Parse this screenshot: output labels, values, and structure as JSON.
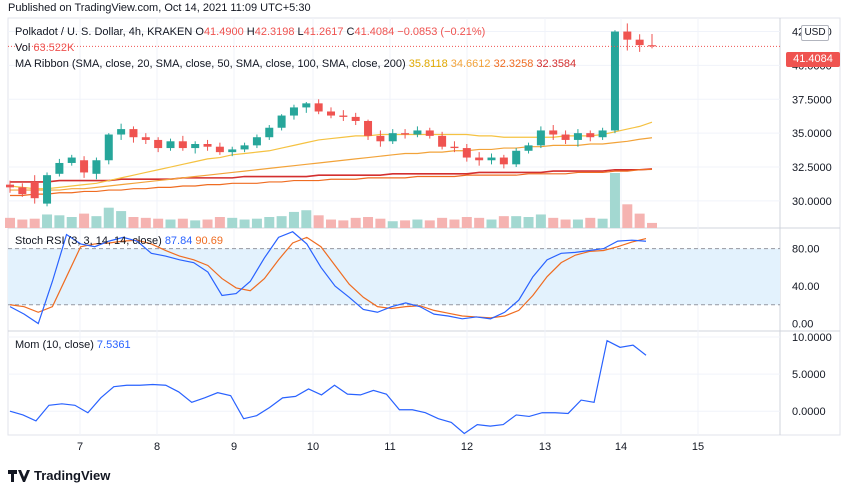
{
  "published": "Published on TradingView.com, Oct 14, 2021 11:09 UTC+5:30",
  "brand": "TradingView",
  "colors": {
    "up": "#26a69a",
    "down": "#ef5350",
    "vol_up": "#a3d8d1",
    "vol_down": "#f5b3b1",
    "sma20": "#f5c242",
    "sma50": "#f2a33a",
    "sma100": "#ef6c21",
    "sma200": "#d32f2f",
    "stoch_k": "#2962ff",
    "stoch_d": "#ef6c21",
    "mom": "#2962ff",
    "rsi_band": "#e3f2fd"
  },
  "legend": {
    "main": {
      "title": "Polkadot / U. S. Dollar, 4h, KRAKEN",
      "o_label": "O",
      "o": "41.4900",
      "h_label": "H",
      "h": "42.3198",
      "l_label": "L",
      "l": "41.2617",
      "c_label": "C",
      "c": "41.4084",
      "change": "−0.0853 (−0.21%)"
    },
    "vol": {
      "label": "Vol",
      "value": "63.522K"
    },
    "ribbon": {
      "label": "MA Ribbon (SMA, close, 20, SMA, close, 50, SMA, close, 100, SMA, close, 200)",
      "v1": "35.8118",
      "v2": "34.6612",
      "v3": "32.3258",
      "v4": "32.3584"
    },
    "stoch": {
      "label": "Stoch RSI (3, 3, 14, 14, close)",
      "k": "87.84",
      "d": "90.69"
    },
    "mom": {
      "label": "Mom (10, close)",
      "value": "7.5361"
    }
  },
  "currency_label": "USD",
  "last_price_label": "41.4084",
  "chart_data": [
    {
      "type": "candlestick",
      "title": "Polkadot / U. S. Dollar, 4h, KRAKEN",
      "x_ticks": [
        "7",
        "8",
        "9",
        "10",
        "11",
        "12",
        "13",
        "14",
        "15"
      ],
      "y_ticks": [
        "30.0000",
        "32.5000",
        "35.0000",
        "37.5000",
        "40.0000",
        "42.5000"
      ],
      "ylim": [
        28.0,
        43.5
      ],
      "candles": [
        {
          "o": 31.2,
          "h": 31.5,
          "l": 30.6,
          "c": 31.0
        },
        {
          "o": 31.0,
          "h": 31.3,
          "l": 30.3,
          "c": 30.5
        },
        {
          "o": 31.4,
          "h": 31.9,
          "l": 29.8,
          "c": 30.2
        },
        {
          "o": 29.8,
          "h": 32.1,
          "l": 29.6,
          "c": 31.9
        },
        {
          "o": 32.0,
          "h": 33.1,
          "l": 31.8,
          "c": 32.8
        },
        {
          "o": 32.8,
          "h": 33.4,
          "l": 32.6,
          "c": 33.2
        },
        {
          "o": 33.0,
          "h": 33.3,
          "l": 31.7,
          "c": 32.1
        },
        {
          "o": 32.0,
          "h": 33.2,
          "l": 31.6,
          "c": 33.0
        },
        {
          "o": 33.0,
          "h": 35.0,
          "l": 32.7,
          "c": 34.9
        },
        {
          "o": 34.9,
          "h": 35.7,
          "l": 34.5,
          "c": 35.3
        },
        {
          "o": 35.3,
          "h": 35.5,
          "l": 34.3,
          "c": 34.7
        },
        {
          "o": 34.7,
          "h": 35.0,
          "l": 34.2,
          "c": 34.5
        },
        {
          "o": 34.5,
          "h": 34.7,
          "l": 33.6,
          "c": 33.9
        },
        {
          "o": 33.9,
          "h": 34.6,
          "l": 33.7,
          "c": 34.4
        },
        {
          "o": 34.4,
          "h": 34.8,
          "l": 33.7,
          "c": 33.9
        },
        {
          "o": 33.9,
          "h": 34.4,
          "l": 33.5,
          "c": 34.2
        },
        {
          "o": 34.2,
          "h": 34.5,
          "l": 33.7,
          "c": 34.0
        },
        {
          "o": 34.0,
          "h": 34.3,
          "l": 33.4,
          "c": 33.6
        },
        {
          "o": 33.6,
          "h": 34.0,
          "l": 33.3,
          "c": 33.8
        },
        {
          "o": 33.8,
          "h": 34.3,
          "l": 33.6,
          "c": 34.1
        },
        {
          "o": 34.1,
          "h": 34.9,
          "l": 33.9,
          "c": 34.7
        },
        {
          "o": 34.7,
          "h": 35.6,
          "l": 34.5,
          "c": 35.4
        },
        {
          "o": 35.4,
          "h": 36.4,
          "l": 35.2,
          "c": 36.3
        },
        {
          "o": 36.3,
          "h": 37.1,
          "l": 36.0,
          "c": 36.9
        },
        {
          "o": 36.9,
          "h": 37.3,
          "l": 36.5,
          "c": 37.2
        },
        {
          "o": 37.2,
          "h": 37.5,
          "l": 36.4,
          "c": 36.6
        },
        {
          "o": 36.6,
          "h": 36.9,
          "l": 36.1,
          "c": 36.3
        },
        {
          "o": 36.3,
          "h": 36.7,
          "l": 35.9,
          "c": 36.2
        },
        {
          "o": 36.2,
          "h": 36.5,
          "l": 35.6,
          "c": 35.9
        },
        {
          "o": 35.9,
          "h": 36.0,
          "l": 34.5,
          "c": 34.8
        },
        {
          "o": 34.8,
          "h": 35.2,
          "l": 34.0,
          "c": 34.4
        },
        {
          "o": 34.4,
          "h": 35.3,
          "l": 34.2,
          "c": 35.0
        },
        {
          "o": 35.0,
          "h": 35.3,
          "l": 34.6,
          "c": 34.9
        },
        {
          "o": 34.9,
          "h": 35.5,
          "l": 34.7,
          "c": 35.2
        },
        {
          "o": 35.2,
          "h": 35.4,
          "l": 34.6,
          "c": 34.8
        },
        {
          "o": 34.8,
          "h": 35.1,
          "l": 33.8,
          "c": 34.0
        },
        {
          "o": 34.0,
          "h": 34.4,
          "l": 33.6,
          "c": 33.9
        },
        {
          "o": 33.9,
          "h": 34.2,
          "l": 32.9,
          "c": 33.2
        },
        {
          "o": 33.2,
          "h": 33.6,
          "l": 32.6,
          "c": 33.0
        },
        {
          "o": 33.0,
          "h": 33.5,
          "l": 32.7,
          "c": 33.2
        },
        {
          "o": 33.2,
          "h": 33.4,
          "l": 32.4,
          "c": 32.7
        },
        {
          "o": 32.7,
          "h": 33.9,
          "l": 32.5,
          "c": 33.7
        },
        {
          "o": 33.7,
          "h": 34.3,
          "l": 33.5,
          "c": 34.1
        },
        {
          "o": 34.1,
          "h": 35.5,
          "l": 33.9,
          "c": 35.2
        },
        {
          "o": 35.2,
          "h": 35.6,
          "l": 34.5,
          "c": 34.9
        },
        {
          "o": 34.9,
          "h": 35.2,
          "l": 34.2,
          "c": 34.5
        },
        {
          "o": 34.5,
          "h": 35.3,
          "l": 34.0,
          "c": 35.0
        },
        {
          "o": 35.0,
          "h": 35.2,
          "l": 34.4,
          "c": 34.7
        },
        {
          "o": 34.7,
          "h": 35.4,
          "l": 34.5,
          "c": 35.2
        },
        {
          "o": 35.2,
          "h": 42.6,
          "l": 35.0,
          "c": 42.5
        },
        {
          "o": 42.5,
          "h": 43.1,
          "l": 41.1,
          "c": 41.9
        },
        {
          "o": 41.9,
          "h": 42.3,
          "l": 41.0,
          "c": 41.5
        },
        {
          "o": 41.49,
          "h": 42.3198,
          "l": 41.2617,
          "c": 41.4084
        }
      ],
      "volume": [
        1.2,
        1.0,
        1.1,
        1.6,
        1.5,
        1.3,
        1.7,
        1.4,
        2.4,
        2.0,
        1.3,
        1.2,
        1.1,
        1.0,
        1.1,
        0.9,
        1.0,
        1.3,
        1.2,
        1.0,
        1.1,
        1.3,
        1.4,
        1.9,
        2.1,
        1.5,
        1.0,
        0.9,
        1.2,
        1.3,
        1.1,
        0.8,
        0.9,
        1.0,
        0.9,
        1.2,
        1.0,
        1.3,
        1.2,
        1.0,
        1.4,
        1.4,
        1.3,
        1.6,
        1.2,
        1.0,
        1.0,
        1.2,
        1.1,
        6.5,
        2.8,
        1.7,
        0.6
      ],
      "sma20": [
        31.1,
        31.0,
        30.9,
        30.9,
        31.0,
        31.1,
        31.2,
        31.3,
        31.5,
        31.7,
        31.9,
        32.1,
        32.3,
        32.5,
        32.7,
        32.9,
        33.1,
        33.2,
        33.4,
        33.5,
        33.6,
        33.7,
        33.9,
        34.1,
        34.3,
        34.5,
        34.6,
        34.7,
        34.8,
        34.8,
        34.9,
        34.9,
        34.9,
        34.9,
        34.9,
        34.9,
        34.9,
        34.9,
        34.8,
        34.8,
        34.7,
        34.7,
        34.7,
        34.7,
        34.7,
        34.8,
        34.8,
        34.8,
        34.9,
        35.1,
        35.3,
        35.5,
        35.8118
      ],
      "sma50": [
        30.8,
        30.8,
        30.8,
        30.8,
        30.8,
        30.9,
        30.9,
        31.0,
        31.1,
        31.2,
        31.3,
        31.4,
        31.5,
        31.6,
        31.7,
        31.8,
        31.9,
        32.0,
        32.1,
        32.2,
        32.3,
        32.4,
        32.5,
        32.6,
        32.7,
        32.8,
        32.9,
        33.0,
        33.1,
        33.2,
        33.3,
        33.4,
        33.5,
        33.5,
        33.6,
        33.6,
        33.7,
        33.7,
        33.8,
        33.8,
        33.9,
        33.9,
        34.0,
        34.0,
        34.1,
        34.1,
        34.1,
        34.2,
        34.2,
        34.3,
        34.4,
        34.55,
        34.6612
      ],
      "sma100": [
        30.4,
        30.4,
        30.5,
        30.5,
        30.6,
        30.6,
        30.7,
        30.7,
        30.8,
        30.8,
        30.9,
        30.9,
        31.0,
        31.0,
        31.1,
        31.1,
        31.2,
        31.2,
        31.3,
        31.3,
        31.3,
        31.4,
        31.4,
        31.5,
        31.5,
        31.5,
        31.6,
        31.6,
        31.6,
        31.7,
        31.7,
        31.7,
        31.7,
        31.8,
        31.8,
        31.8,
        31.8,
        31.9,
        31.9,
        31.9,
        31.9,
        31.9,
        32.0,
        32.0,
        32.0,
        32.0,
        32.1,
        32.1,
        32.1,
        32.2,
        32.2,
        32.3,
        32.3258
      ],
      "sma200": [
        31.4,
        31.4,
        31.4,
        31.4,
        31.5,
        31.5,
        31.5,
        31.5,
        31.5,
        31.6,
        31.6,
        31.6,
        31.6,
        31.6,
        31.7,
        31.7,
        31.7,
        31.7,
        31.7,
        31.8,
        31.8,
        31.8,
        31.8,
        31.8,
        31.8,
        31.9,
        31.9,
        31.9,
        31.9,
        31.9,
        31.9,
        32.0,
        32.0,
        32.0,
        32.0,
        32.0,
        32.0,
        32.0,
        32.1,
        32.1,
        32.1,
        32.1,
        32.1,
        32.1,
        32.2,
        32.2,
        32.2,
        32.2,
        32.2,
        32.3,
        32.3,
        32.3,
        32.3584
      ]
    },
    {
      "type": "line",
      "title": "Stoch RSI (3, 3, 14, 14, close)",
      "y_ticks": [
        "0.00",
        "40.00",
        "80.00"
      ],
      "ylim": [
        -8,
        102
      ],
      "bands": [
        20,
        80
      ],
      "series": [
        {
          "name": "K",
          "values": [
            18,
            10,
            0,
            45,
            95,
            85,
            82,
            88,
            92,
            88,
            75,
            72,
            68,
            65,
            55,
            30,
            32,
            45,
            70,
            92,
            98,
            85,
            60,
            40,
            28,
            15,
            12,
            18,
            22,
            18,
            10,
            8,
            5,
            7,
            5,
            12,
            25,
            50,
            68,
            75,
            76,
            78,
            80,
            88,
            89,
            87.84
          ]
        },
        {
          "name": "D",
          "values": [
            20,
            18,
            12,
            18,
            50,
            82,
            85,
            86,
            88,
            89,
            85,
            78,
            72,
            68,
            62,
            48,
            38,
            35,
            48,
            68,
            86,
            92,
            82,
            62,
            42,
            28,
            18,
            16,
            18,
            19,
            14,
            11,
            8,
            7,
            6,
            8,
            14,
            30,
            50,
            65,
            73,
            77,
            78,
            82,
            87,
            90.69
          ]
        }
      ]
    },
    {
      "type": "line",
      "title": "Mom (10, close)",
      "y_ticks": [
        "0.0000",
        "5.0000",
        "10.0000"
      ],
      "ylim": [
        -3.2,
        10.8
      ],
      "series": [
        {
          "name": "Mom",
          "values": [
            0.0,
            -0.5,
            -1.3,
            0.8,
            1.0,
            0.8,
            -0.2,
            1.8,
            3.3,
            3.5,
            3.5,
            3.6,
            3.5,
            2.6,
            1.2,
            1.8,
            2.5,
            2.1,
            -1.0,
            -0.6,
            0.5,
            1.8,
            2.0,
            3.0,
            2.2,
            3.5,
            2.3,
            2.2,
            2.8,
            2.3,
            0.2,
            0.2,
            -0.2,
            -1.0,
            -1.5,
            -3.0,
            -1.8,
            -2.0,
            -1.8,
            -0.5,
            -0.7,
            -0.2,
            -0.2,
            -0.3,
            1.5,
            1.2,
            9.5,
            8.6,
            8.9,
            7.5361
          ]
        }
      ]
    }
  ]
}
